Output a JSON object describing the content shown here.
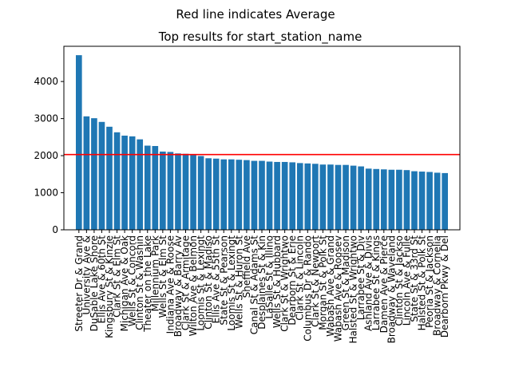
{
  "suptitle": "Red line indicates Average",
  "chart_data": {
    "type": "bar",
    "title": "Top results for start_station_name",
    "xlabel": "",
    "ylabel": "",
    "ylim": [
      0,
      4950
    ],
    "yticks": [
      0,
      1000,
      2000,
      3000,
      4000
    ],
    "grid": false,
    "bar_color": "#1f77b4",
    "average_line": {
      "value": 2030,
      "color": "#ff0000"
    },
    "categories": [
      "Streeter Dr & Grand",
      "University Ave &",
      "DuSable Lake Shore",
      "Ellis Ave & 60th St",
      "Kingsbury St & Kinzie",
      "Clark St & Elm St",
      "Michigan Ave & Oak",
      "Wells St & Concord",
      "Clinton St & Washin",
      "Theater on the Lake",
      "Millennium Park",
      "Wells St & Elm St",
      "Indiana Ave & Roose",
      "Broadway & Barry Av",
      "Clark St & Armitage",
      "Wilton Ave & Belmon",
      "Loomis St & Lexingt",
      "Clinton St & Madiso",
      "Ellis Ave & 55th St",
      "State St & Pearson",
      "Loomis St & Lexingt",
      "Wells St & Huron St",
      "Sheffield Ave",
      "Canal St & Adams St",
      "Desplaines St & Kin",
      "LaSalle St & Illino",
      "Wells St & Hubbard",
      "Clark St & Wrightwo",
      "Dearborn St & Erie",
      "Clark St & Lincoln",
      "Columbus Dr & Rando",
      "Clark St & Newport",
      "Morgan St & Polk St",
      "Wabash Ave & Grand",
      "Wabash Ave & Roosev",
      "Green St & Madison",
      "Halsted St & Wrightwo",
      "Larrabee St & Div",
      "Ashland Ave & Divis",
      "Larrabee St & Kings",
      "Damen Ave & Pierce",
      "Broadway & Waveland",
      "Clinton St & Jackso",
      "Lincoln Ave & Fulle",
      "State St & 33rd St",
      "Halsted St & Polk St",
      "Peoria St & Jackson",
      "Broadway & Cornelia",
      "Dearborn Pkwy & Del"
    ],
    "values": [
      4710,
      3060,
      3010,
      2910,
      2780,
      2630,
      2540,
      2520,
      2440,
      2270,
      2260,
      2110,
      2100,
      2060,
      2050,
      2040,
      1990,
      1930,
      1920,
      1900,
      1900,
      1890,
      1880,
      1860,
      1860,
      1840,
      1830,
      1830,
      1820,
      1800,
      1790,
      1780,
      1760,
      1760,
      1750,
      1750,
      1730,
      1710,
      1650,
      1640,
      1630,
      1620,
      1620,
      1610,
      1580,
      1570,
      1560,
      1540,
      1530
    ]
  }
}
